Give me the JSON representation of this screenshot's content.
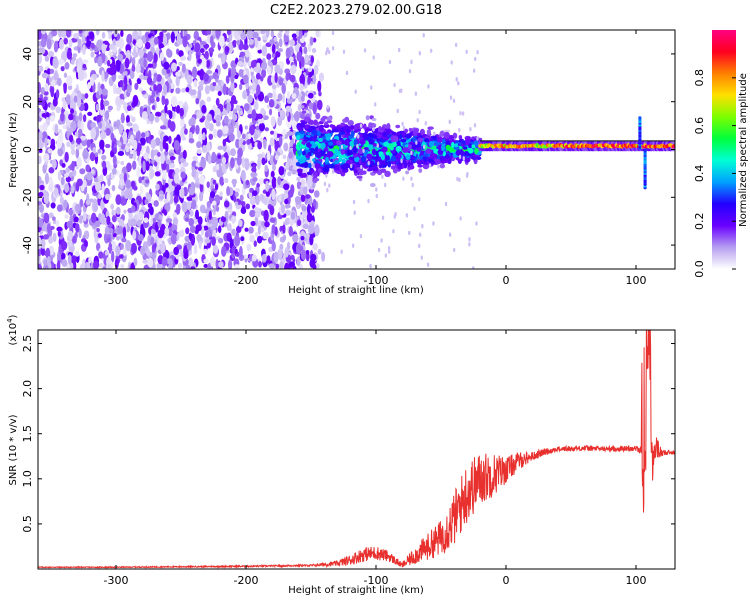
{
  "title": "C2E2.2023.279.02.00.G18",
  "chart_data": [
    {
      "type": "heatmap",
      "title": "C2E2.2023.279.02.00.G18",
      "xlabel": "Height of straight line (km)",
      "ylabel": "Frequency (Hz)",
      "xlim": [
        -360,
        130
      ],
      "ylim": [
        -50,
        50
      ],
      "x_ticks": [
        -300,
        -200,
        -100,
        0,
        100
      ],
      "y_ticks": [
        -40,
        -20,
        0,
        20,
        40
      ],
      "grid": false,
      "colorbar": {
        "label": "Normalized spectral amplitude",
        "range": [
          0,
          1
        ],
        "ticks": [
          "0.0",
          "0.2",
          "0.4",
          "0.6",
          "0.8"
        ],
        "colormap": [
          "#ffffff",
          "#b59ef0",
          "#6a00ff",
          "#2200ff",
          "#00a0ff",
          "#00ffd5",
          "#00ff3c",
          "#7cff00",
          "#ffe000",
          "#ff8000",
          "#ff0020",
          "#ff0080"
        ]
      },
      "regions": [
        {
          "x_range": [
            -360,
            -150
          ],
          "freq_range": [
            -50,
            50
          ],
          "amplitude": "0.0-0.2",
          "description_color": "#6a00ff"
        },
        {
          "x_range": [
            -160,
            -20
          ],
          "freq_range": [
            -12,
            12
          ],
          "amplitude": "0.2-0.6",
          "center_freq": 0
        },
        {
          "x_range": [
            -20,
            130
          ],
          "freq_range": [
            -2,
            3
          ],
          "amplitude": "0.8-1.0",
          "center_freq": 1.5
        }
      ]
    },
    {
      "type": "line",
      "xlabel": "Height of straight line (km)",
      "ylabel": "SNR (10 * v/v)",
      "y_multiplier": "(x10",
      "y_multiplier_exp": "4",
      "y_multiplier_close": ")",
      "xlim": [
        -360,
        130
      ],
      "ylim": [
        0,
        2.65
      ],
      "x_ticks": [
        -300,
        -200,
        -100,
        0,
        100
      ],
      "y_ticks": [
        "0.5",
        "1.0",
        "1.5",
        "2.0",
        "2.5"
      ],
      "grid": false,
      "series": [
        {
          "color": "#e8312e",
          "x": [
            -360,
            -300,
            -200,
            -150,
            -130,
            -120,
            -110,
            -100,
            -90,
            -80,
            -70,
            -60,
            -50,
            -40,
            -30,
            -20,
            -10,
            0,
            10,
            20,
            30,
            40,
            60,
            80,
            100,
            104,
            106,
            108,
            110,
            112,
            115,
            120,
            130
          ],
          "y": [
            0.02,
            0.02,
            0.03,
            0.04,
            0.06,
            0.1,
            0.16,
            0.18,
            0.14,
            0.04,
            0.15,
            0.25,
            0.35,
            0.55,
            0.85,
            1.0,
            1.05,
            1.1,
            1.2,
            1.25,
            1.3,
            1.33,
            1.34,
            1.33,
            1.34,
            1.3,
            0.9,
            2.0,
            2.6,
            1.1,
            1.35,
            1.28,
            1.3
          ],
          "noise_amplitude": [
            0.005,
            0.005,
            0.008,
            0.01,
            0.03,
            0.06,
            0.08,
            0.08,
            0.06,
            0.03,
            0.1,
            0.15,
            0.2,
            0.3,
            0.35,
            0.3,
            0.25,
            0.15,
            0.1,
            0.05,
            0.04,
            0.03,
            0.03,
            0.03,
            0.03,
            0.05,
            0.4,
            0.5,
            0.4,
            0.3,
            0.15,
            0.03,
            0.03
          ]
        }
      ]
    }
  ]
}
